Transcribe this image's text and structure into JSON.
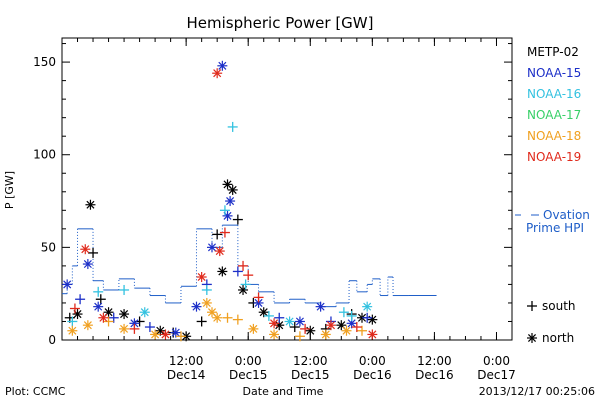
{
  "footer": {
    "plot_label": "Plot: CCMC",
    "timestamp": "2013/12/17 00:25:06"
  },
  "chart_data": {
    "type": "scatter",
    "title": "Hemispheric Power [GW]",
    "xlabel": "Date and Time",
    "ylabel": "P [GW]",
    "ylim": [
      0,
      163
    ],
    "xlim": [
      "2013-12-13T12:00",
      "2013-12-17T03:00"
    ],
    "yticks": [
      0,
      50,
      100,
      150
    ],
    "xticks": [
      {
        "t": "2013-12-14T12:00",
        "time": "12:00",
        "date": "Dec14"
      },
      {
        "t": "2013-12-15T00:00",
        "time": "0:00",
        "date": "Dec15"
      },
      {
        "t": "2013-12-15T12:00",
        "time": "12:00",
        "date": "Dec15"
      },
      {
        "t": "2013-12-16T00:00",
        "time": "0:00",
        "date": "Dec16"
      },
      {
        "t": "2013-12-16T12:00",
        "time": "12:00",
        "date": "Dec16"
      },
      {
        "t": "2013-12-17T00:00",
        "time": "0:00",
        "date": "Dec17"
      }
    ],
    "grid": false,
    "legend_position": "right",
    "marker_legend": [
      {
        "symbol": "+",
        "label": "south"
      },
      {
        "symbol": "*",
        "label": "north"
      }
    ],
    "series": [
      {
        "name": "METP-02",
        "color": "#000000",
        "points": [
          {
            "t": "2013-12-13T13:30",
            "v": 12,
            "m": "+"
          },
          {
            "t": "2013-12-13T15:00",
            "v": 14,
            "m": "*"
          },
          {
            "t": "2013-12-13T17:30",
            "v": 73,
            "m": "*"
          },
          {
            "t": "2013-12-13T18:00",
            "v": 47,
            "m": "+"
          },
          {
            "t": "2013-12-13T19:30",
            "v": 22,
            "m": "+"
          },
          {
            "t": "2013-12-13T21:00",
            "v": 15,
            "m": "*"
          },
          {
            "t": "2013-12-14T00:00",
            "v": 14,
            "m": "*"
          },
          {
            "t": "2013-12-14T03:00",
            "v": 10,
            "m": "+"
          },
          {
            "t": "2013-12-14T07:00",
            "v": 5,
            "m": "*"
          },
          {
            "t": "2013-12-14T09:30",
            "v": 4,
            "m": "+"
          },
          {
            "t": "2013-12-14T12:00",
            "v": 2,
            "m": "*"
          },
          {
            "t": "2013-12-14T15:00",
            "v": 10,
            "m": "+"
          },
          {
            "t": "2013-12-14T18:00",
            "v": 57,
            "m": "+"
          },
          {
            "t": "2013-12-14T19:00",
            "v": 37,
            "m": "*"
          },
          {
            "t": "2013-12-14T20:00",
            "v": 84,
            "m": "*"
          },
          {
            "t": "2013-12-14T21:00",
            "v": 81,
            "m": "*"
          },
          {
            "t": "2013-12-14T22:00",
            "v": 65,
            "m": "+"
          },
          {
            "t": "2013-12-14T23:00",
            "v": 27,
            "m": "*"
          },
          {
            "t": "2013-12-15T01:00",
            "v": 20,
            "m": "+"
          },
          {
            "t": "2013-12-15T03:00",
            "v": 15,
            "m": "*"
          },
          {
            "t": "2013-12-15T06:00",
            "v": 8,
            "m": "*"
          },
          {
            "t": "2013-12-15T09:00",
            "v": 7,
            "m": "+"
          },
          {
            "t": "2013-12-15T12:00",
            "v": 5,
            "m": "*"
          },
          {
            "t": "2013-12-15T15:00",
            "v": 6,
            "m": "+"
          },
          {
            "t": "2013-12-15T18:00",
            "v": 8,
            "m": "*"
          },
          {
            "t": "2013-12-15T20:00",
            "v": 14,
            "m": "+"
          },
          {
            "t": "2013-12-15T22:00",
            "v": 12,
            "m": "*"
          },
          {
            "t": "2013-12-16T00:00",
            "v": 11,
            "m": "*"
          }
        ]
      },
      {
        "name": "NOAA-15",
        "color": "#1c2fc8",
        "points": [
          {
            "t": "2013-12-13T13:00",
            "v": 30,
            "m": "*"
          },
          {
            "t": "2013-12-13T15:30",
            "v": 22,
            "m": "+"
          },
          {
            "t": "2013-12-13T17:00",
            "v": 41,
            "m": "*"
          },
          {
            "t": "2013-12-13T19:00",
            "v": 18,
            "m": "*"
          },
          {
            "t": "2013-12-13T22:00",
            "v": 12,
            "m": "+"
          },
          {
            "t": "2013-12-14T02:00",
            "v": 9,
            "m": "*"
          },
          {
            "t": "2013-12-14T05:00",
            "v": 7,
            "m": "+"
          },
          {
            "t": "2013-12-14T10:00",
            "v": 4,
            "m": "*"
          },
          {
            "t": "2013-12-14T14:00",
            "v": 18,
            "m": "*"
          },
          {
            "t": "2013-12-14T16:00",
            "v": 30,
            "m": "+"
          },
          {
            "t": "2013-12-14T17:00",
            "v": 50,
            "m": "*"
          },
          {
            "t": "2013-12-14T19:00",
            "v": 148,
            "m": "*"
          },
          {
            "t": "2013-12-14T20:00",
            "v": 67,
            "m": "*"
          },
          {
            "t": "2013-12-14T20:30",
            "v": 75,
            "m": "*"
          },
          {
            "t": "2013-12-14T22:00",
            "v": 37,
            "m": "+"
          },
          {
            "t": "2013-12-15T02:00",
            "v": 20,
            "m": "*"
          },
          {
            "t": "2013-12-15T06:00",
            "v": 12,
            "m": "+"
          },
          {
            "t": "2013-12-15T10:00",
            "v": 10,
            "m": "*"
          },
          {
            "t": "2013-12-15T14:00",
            "v": 18,
            "m": "*"
          },
          {
            "t": "2013-12-15T16:00",
            "v": 10,
            "m": "+"
          },
          {
            "t": "2013-12-15T20:00",
            "v": 9,
            "m": "*"
          },
          {
            "t": "2013-12-15T23:00",
            "v": 12,
            "m": "+"
          }
        ]
      },
      {
        "name": "NOAA-16",
        "color": "#33c2e0",
        "points": [
          {
            "t": "2013-12-13T14:00",
            "v": 10,
            "m": "+"
          },
          {
            "t": "2013-12-13T19:00",
            "v": 26,
            "m": "+"
          },
          {
            "t": "2013-12-14T00:00",
            "v": 27,
            "m": "+"
          },
          {
            "t": "2013-12-14T04:00",
            "v": 15,
            "m": "*"
          },
          {
            "t": "2013-12-14T16:00",
            "v": 27,
            "m": "+"
          },
          {
            "t": "2013-12-14T19:30",
            "v": 70,
            "m": "+"
          },
          {
            "t": "2013-12-14T21:00",
            "v": 115,
            "m": "+"
          },
          {
            "t": "2013-12-14T23:30",
            "v": 30,
            "m": "+"
          },
          {
            "t": "2013-12-15T04:00",
            "v": 13,
            "m": "+"
          },
          {
            "t": "2013-12-15T08:00",
            "v": 10,
            "m": "*"
          },
          {
            "t": "2013-12-15T18:30",
            "v": 15,
            "m": "+"
          },
          {
            "t": "2013-12-15T20:00",
            "v": 13,
            "m": "+"
          },
          {
            "t": "2013-12-15T23:00",
            "v": 18,
            "m": "*"
          }
        ]
      },
      {
        "name": "NOAA-17",
        "color": "#38d068",
        "points": []
      },
      {
        "name": "NOAA-18",
        "color": "#f0a020",
        "points": [
          {
            "t": "2013-12-13T14:00",
            "v": 5,
            "m": "*"
          },
          {
            "t": "2013-12-13T17:00",
            "v": 8,
            "m": "*"
          },
          {
            "t": "2013-12-13T21:00",
            "v": 10,
            "m": "+"
          },
          {
            "t": "2013-12-14T00:00",
            "v": 6,
            "m": "*"
          },
          {
            "t": "2013-12-14T06:00",
            "v": 3,
            "m": "*"
          },
          {
            "t": "2013-12-14T11:00",
            "v": 2,
            "m": "+"
          },
          {
            "t": "2013-12-14T16:00",
            "v": 20,
            "m": "*"
          },
          {
            "t": "2013-12-14T17:00",
            "v": 15,
            "m": "*"
          },
          {
            "t": "2013-12-14T18:00",
            "v": 12,
            "m": "*"
          },
          {
            "t": "2013-12-14T20:00",
            "v": 12,
            "m": "+"
          },
          {
            "t": "2013-12-14T22:00",
            "v": 11,
            "m": "+"
          },
          {
            "t": "2013-12-15T01:00",
            "v": 6,
            "m": "*"
          },
          {
            "t": "2013-12-15T05:00",
            "v": 3,
            "m": "*"
          },
          {
            "t": "2013-12-15T10:00",
            "v": 2,
            "m": "+"
          },
          {
            "t": "2013-12-15T15:00",
            "v": 3,
            "m": "*"
          },
          {
            "t": "2013-12-15T19:00",
            "v": 5,
            "m": "*"
          },
          {
            "t": "2013-12-15T22:00",
            "v": 5,
            "m": "+"
          }
        ]
      },
      {
        "name": "NOAA-19",
        "color": "#e02a1c",
        "points": [
          {
            "t": "2013-12-13T14:30",
            "v": 17,
            "m": "+"
          },
          {
            "t": "2013-12-13T16:30",
            "v": 49,
            "m": "*"
          },
          {
            "t": "2013-12-13T20:00",
            "v": 12,
            "m": "*"
          },
          {
            "t": "2013-12-14T02:00",
            "v": 6,
            "m": "+"
          },
          {
            "t": "2013-12-14T08:00",
            "v": 3,
            "m": "*"
          },
          {
            "t": "2013-12-14T15:00",
            "v": 34,
            "m": "*"
          },
          {
            "t": "2013-12-14T18:00",
            "v": 144,
            "m": "*"
          },
          {
            "t": "2013-12-14T18:30",
            "v": 48,
            "m": "*"
          },
          {
            "t": "2013-12-14T19:30",
            "v": 58,
            "m": "+"
          },
          {
            "t": "2013-12-14T23:00",
            "v": 40,
            "m": "+"
          },
          {
            "t": "2013-12-15T00:00",
            "v": 35,
            "m": "+"
          },
          {
            "t": "2013-12-15T02:00",
            "v": 23,
            "m": "+"
          },
          {
            "t": "2013-12-15T05:00",
            "v": 9,
            "m": "*"
          },
          {
            "t": "2013-12-15T11:00",
            "v": 6,
            "m": "+"
          },
          {
            "t": "2013-12-15T16:00",
            "v": 8,
            "m": "*"
          },
          {
            "t": "2013-12-15T21:00",
            "v": 7,
            "m": "+"
          },
          {
            "t": "2013-12-16T00:00",
            "v": 3,
            "m": "*"
          }
        ]
      }
    ],
    "ovation": {
      "name": "Ovation Prime HPI",
      "color": "#1f5ec8",
      "steps": [
        {
          "t": "2013-12-13T12:00",
          "v": 25
        },
        {
          "t": "2013-12-13T13:00",
          "v": 30
        },
        {
          "t": "2013-12-13T14:00",
          "v": 40
        },
        {
          "t": "2013-12-13T15:00",
          "v": 60
        },
        {
          "t": "2013-12-13T18:00",
          "v": 32
        },
        {
          "t": "2013-12-13T20:00",
          "v": 27
        },
        {
          "t": "2013-12-13T23:00",
          "v": 33
        },
        {
          "t": "2013-12-14T02:00",
          "v": 28
        },
        {
          "t": "2013-12-14T05:00",
          "v": 24
        },
        {
          "t": "2013-12-14T08:00",
          "v": 20
        },
        {
          "t": "2013-12-14T11:00",
          "v": 29
        },
        {
          "t": "2013-12-14T14:00",
          "v": 60
        },
        {
          "t": "2013-12-14T17:00",
          "v": 50
        },
        {
          "t": "2013-12-14T19:00",
          "v": 62
        },
        {
          "t": "2013-12-14T22:00",
          "v": 40
        },
        {
          "t": "2013-12-15T00:00",
          "v": 30
        },
        {
          "t": "2013-12-15T02:00",
          "v": 26
        },
        {
          "t": "2013-12-15T05:00",
          "v": 20
        },
        {
          "t": "2013-12-15T08:00",
          "v": 22
        },
        {
          "t": "2013-12-15T11:00",
          "v": 20
        },
        {
          "t": "2013-12-15T14:00",
          "v": 18
        },
        {
          "t": "2013-12-15T17:00",
          "v": 20
        },
        {
          "t": "2013-12-15T19:30",
          "v": 32
        },
        {
          "t": "2013-12-15T21:00",
          "v": 26
        },
        {
          "t": "2013-12-15T23:00",
          "v": 30
        },
        {
          "t": "2013-12-16T00:00",
          "v": 33
        },
        {
          "t": "2013-12-16T01:30",
          "v": 24
        },
        {
          "t": "2013-12-16T03:00",
          "v": 34
        },
        {
          "t": "2013-12-16T04:00",
          "v": 24
        },
        {
          "t": "2013-12-16T07:00",
          "v": 24
        }
      ]
    }
  }
}
